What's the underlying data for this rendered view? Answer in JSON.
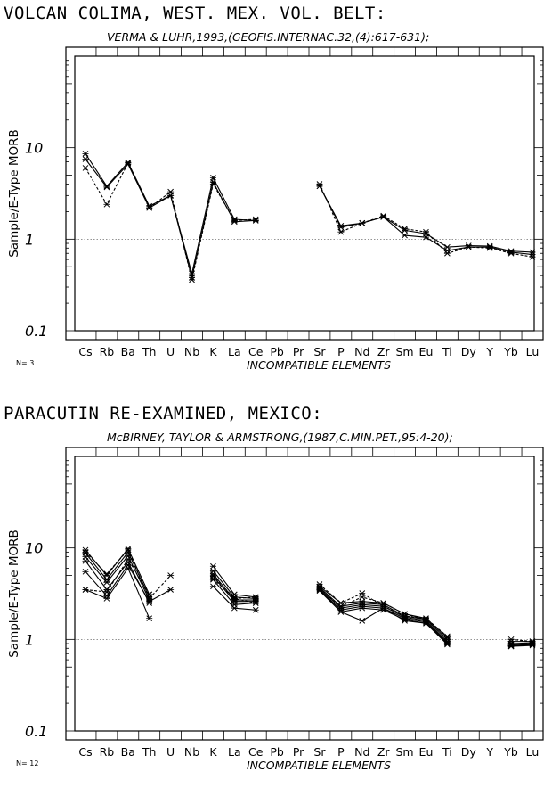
{
  "footer_n_prefix": "N=",
  "chart_data": [
    {
      "type": "line",
      "title": "VOLCAN COLIMA, WEST. MEX. VOL. BELT:",
      "subtitle": "VERMA & LUHR,1993,(GEOFIS.INTERNAC.32,(4):617-631);",
      "n_label": "N= 3",
      "xlabel": "INCOMPATIBLE ELEMENTS",
      "ylabel": "Sample/E-Type MORB",
      "yscale": "log",
      "ylim": [
        0.1,
        100
      ],
      "ytick_labels": [
        "10",
        "1",
        "0.1"
      ],
      "reference_line": 1,
      "categories": [
        "Cs",
        "Rb",
        "Ba",
        "Th",
        "U",
        "Nb",
        "K",
        "La",
        "Ce",
        "Pb",
        "Pr",
        "Sr",
        "P",
        "Nd",
        "Zr",
        "Sm",
        "Eu",
        "Ti",
        "Dy",
        "Y",
        "Yb",
        "Lu"
      ],
      "series": [
        {
          "values": [
            8.6,
            3.8,
            6.9,
            2.3,
            3.0,
            0.42,
            4.7,
            1.65,
            1.6,
            null,
            null,
            3.8,
            1.4,
            1.5,
            1.75,
            1.1,
            1.05,
            0.75,
            0.82,
            0.82,
            0.72,
            0.68
          ],
          "dashed": false
        },
        {
          "values": [
            7.5,
            3.7,
            6.6,
            2.2,
            3.0,
            0.38,
            4.2,
            1.55,
            1.6,
            null,
            null,
            3.8,
            1.35,
            1.5,
            1.75,
            1.25,
            1.15,
            0.82,
            0.85,
            0.84,
            0.74,
            0.72
          ],
          "dashed": false
        },
        {
          "values": [
            6.0,
            2.4,
            6.8,
            2.2,
            3.3,
            0.36,
            4.0,
            1.6,
            1.65,
            null,
            null,
            4.0,
            1.2,
            1.5,
            1.8,
            1.3,
            1.2,
            0.7,
            0.82,
            0.8,
            0.7,
            0.64
          ],
          "dashed": true
        }
      ]
    },
    {
      "type": "line",
      "title": "PARACUTIN RE-EXAMINED, MEXICO:",
      "subtitle": "McBIRNEY, TAYLOR & ARMSTRONG,(1987,C.MIN.PET.,95:4-20);",
      "n_label": "N= 12",
      "xlabel": "INCOMPATIBLE ELEMENTS",
      "ylabel": "Sample/E-Type MORB",
      "yscale": "log",
      "ylim": [
        0.1,
        100
      ],
      "ytick_labels": [
        "10",
        "1",
        "0.1"
      ],
      "reference_line": 1,
      "categories": [
        "Cs",
        "Rb",
        "Ba",
        "Th",
        "U",
        "Nb",
        "K",
        "La",
        "Ce",
        "Pb",
        "Pr",
        "Sr",
        "P",
        "Nd",
        "Zr",
        "Sm",
        "Eu",
        "Ti",
        "Dy",
        "Y",
        "Yb",
        "Lu"
      ],
      "series": [
        {
          "values": [
            9.5,
            5.0,
            9.8,
            3.1,
            null,
            null,
            6.3,
            3.1,
            2.9,
            null,
            null,
            3.8,
            2.5,
            2.6,
            2.5,
            1.9,
            1.7,
            1.05,
            null,
            null,
            0.95,
            0.95
          ],
          "dashed": false
        },
        {
          "values": [
            8.8,
            4.5,
            9.0,
            2.9,
            null,
            null,
            5.6,
            2.9,
            2.8,
            null,
            null,
            3.7,
            2.3,
            2.5,
            2.4,
            1.8,
            1.65,
            1.0,
            null,
            null,
            0.9,
            0.92
          ],
          "dashed": false
        },
        {
          "values": [
            8.0,
            4.2,
            8.2,
            2.7,
            null,
            null,
            5.2,
            2.7,
            2.7,
            null,
            null,
            3.6,
            2.2,
            2.4,
            2.3,
            1.75,
            1.6,
            0.95,
            null,
            null,
            0.88,
            0.9
          ],
          "dashed": false
        },
        {
          "values": [
            7.2,
            3.5,
            7.0,
            2.5,
            null,
            null,
            4.9,
            2.6,
            2.6,
            null,
            null,
            3.5,
            2.1,
            2.3,
            2.2,
            1.7,
            1.55,
            0.92,
            null,
            null,
            0.86,
            0.88
          ],
          "dashed": false
        },
        {
          "values": [
            5.5,
            3.0,
            6.5,
            2.6,
            3.5,
            null,
            4.5,
            2.4,
            2.5,
            null,
            null,
            3.5,
            2.0,
            2.2,
            2.1,
            1.65,
            1.5,
            0.9,
            null,
            null,
            0.85,
            0.88
          ],
          "dashed": false
        },
        {
          "values": [
            3.5,
            2.8,
            6.0,
            1.7,
            null,
            null,
            3.8,
            2.2,
            2.1,
            null,
            null,
            3.4,
            2.0,
            1.6,
            2.2,
            1.6,
            1.5,
            0.88,
            null,
            null,
            0.84,
            0.86
          ],
          "dashed": false
        },
        {
          "values": [
            9.0,
            5.2,
            9.5,
            2.8,
            5.0,
            null,
            5.0,
            2.8,
            2.9,
            null,
            null,
            4.0,
            2.5,
            3.2,
            2.3,
            1.8,
            1.7,
            1.08,
            null,
            null,
            1.0,
            0.95
          ],
          "dashed": true
        },
        {
          "values": [
            3.5,
            3.3,
            7.5,
            3.1,
            null,
            null,
            4.6,
            2.8,
            2.5,
            null,
            null,
            3.6,
            2.3,
            2.9,
            2.5,
            1.9,
            1.65,
            1.0,
            null,
            null,
            0.9,
            0.9
          ],
          "dashed": true
        }
      ]
    }
  ]
}
